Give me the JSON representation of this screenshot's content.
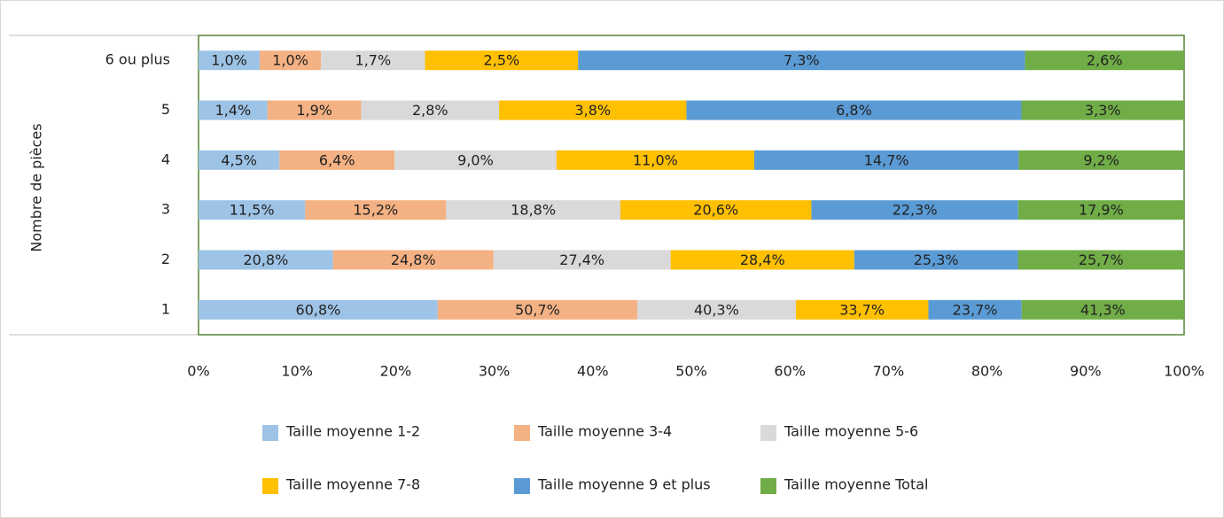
{
  "chart_data": {
    "type": "bar",
    "orientation": "horizontal",
    "stacking": "percent",
    "y_label": "Nombre de pièces",
    "categories": [
      "1",
      "2",
      "3",
      "4",
      "5",
      "6 ou plus"
    ],
    "series": [
      {
        "name": "Taille moyenne 1-2",
        "color": "#9dc3e6",
        "values": [
          60.8,
          20.8,
          11.5,
          4.5,
          1.4,
          1.0
        ],
        "value_labels": [
          "60,8%",
          "20,8%",
          "11,5%",
          "4,5%",
          "1,4%",
          "1,0%"
        ]
      },
      {
        "name": "Taille moyenne 3-4",
        "color": "#f4b183",
        "values": [
          50.7,
          24.8,
          15.2,
          6.4,
          1.9,
          1.0
        ],
        "value_labels": [
          "50,7%",
          "24,8%",
          "15,2%",
          "6,4%",
          "1,9%",
          "1,0%"
        ]
      },
      {
        "name": "Taille moyenne 5-6",
        "color": "#d9d9d9",
        "values": [
          40.3,
          27.4,
          18.8,
          9.0,
          2.8,
          1.7
        ],
        "value_labels": [
          "40,3%",
          "27,4%",
          "18,8%",
          "9,0%",
          "2,8%",
          "1,7%"
        ]
      },
      {
        "name": "Taille moyenne 7-8",
        "color": "#ffc000",
        "values": [
          33.7,
          28.4,
          20.6,
          11.0,
          3.8,
          2.5
        ],
        "value_labels": [
          "33,7%",
          "28,4%",
          "20,6%",
          "11,0%",
          "3,8%",
          "2,5%"
        ]
      },
      {
        "name": "Taille moyenne 9 et plus",
        "color": "#5b9bd5",
        "values": [
          23.7,
          25.3,
          22.3,
          14.7,
          6.8,
          7.3
        ],
        "value_labels": [
          "23,7%",
          "25,3%",
          "22,3%",
          "14,7%",
          "6,8%",
          "7,3%"
        ]
      },
      {
        "name": "Taille moyenne Total",
        "color": "#70ad47",
        "values": [
          41.3,
          25.7,
          17.9,
          9.2,
          3.3,
          2.6
        ],
        "value_labels": [
          "41,3%",
          "25,7%",
          "17,9%",
          "9,2%",
          "3,3%",
          "2,6%"
        ]
      }
    ],
    "xlim": [
      0,
      100
    ],
    "xticks": [
      {
        "value": 0,
        "label": "0%"
      },
      {
        "value": 10,
        "label": "10%"
      },
      {
        "value": 20,
        "label": "20%"
      },
      {
        "value": 30,
        "label": "30%"
      },
      {
        "value": 40,
        "label": "40%"
      },
      {
        "value": 50,
        "label": "50%"
      },
      {
        "value": 60,
        "label": "60%"
      },
      {
        "value": 70,
        "label": "70%"
      },
      {
        "value": 80,
        "label": "80%"
      },
      {
        "value": 90,
        "label": "90%"
      },
      {
        "value": 100,
        "label": "100%"
      }
    ],
    "legend": "bottom"
  }
}
